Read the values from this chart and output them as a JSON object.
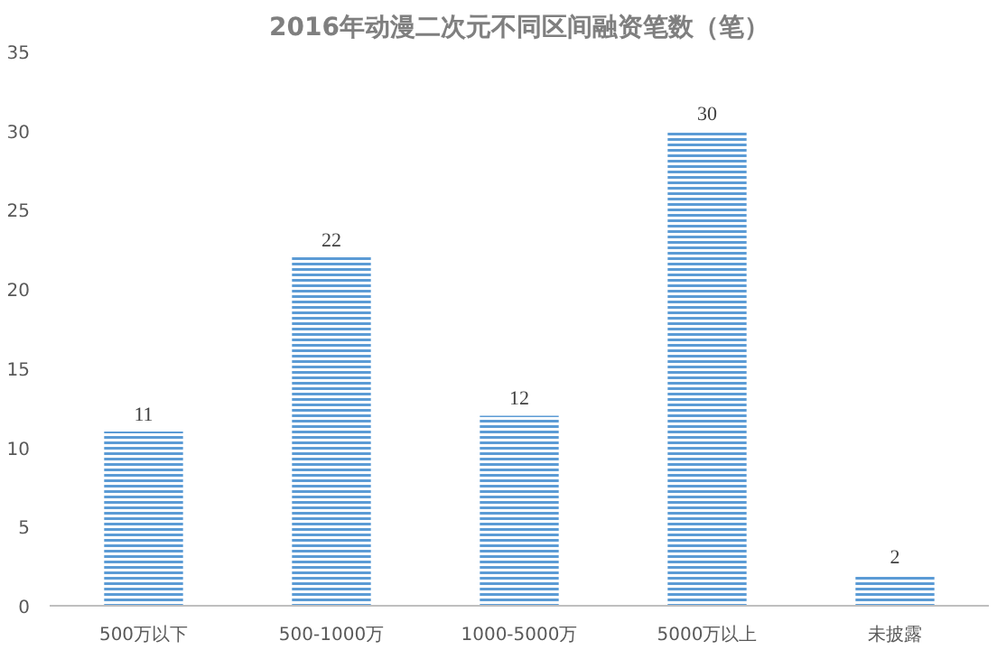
{
  "chart_data": {
    "type": "bar",
    "title": "2016年动漫二次元不同区间融资笔数（笔）",
    "categories": [
      "500万以下",
      "500-1000万",
      "1000-5000万",
      "5000万以上",
      "未披露"
    ],
    "values": [
      11,
      22,
      12,
      30,
      2
    ],
    "color": "#5b9bd5",
    "ylim": [
      0,
      35
    ],
    "yticks": [
      0,
      5,
      10,
      15,
      20,
      25,
      30,
      35
    ],
    "grid": false,
    "data_labels": true
  }
}
